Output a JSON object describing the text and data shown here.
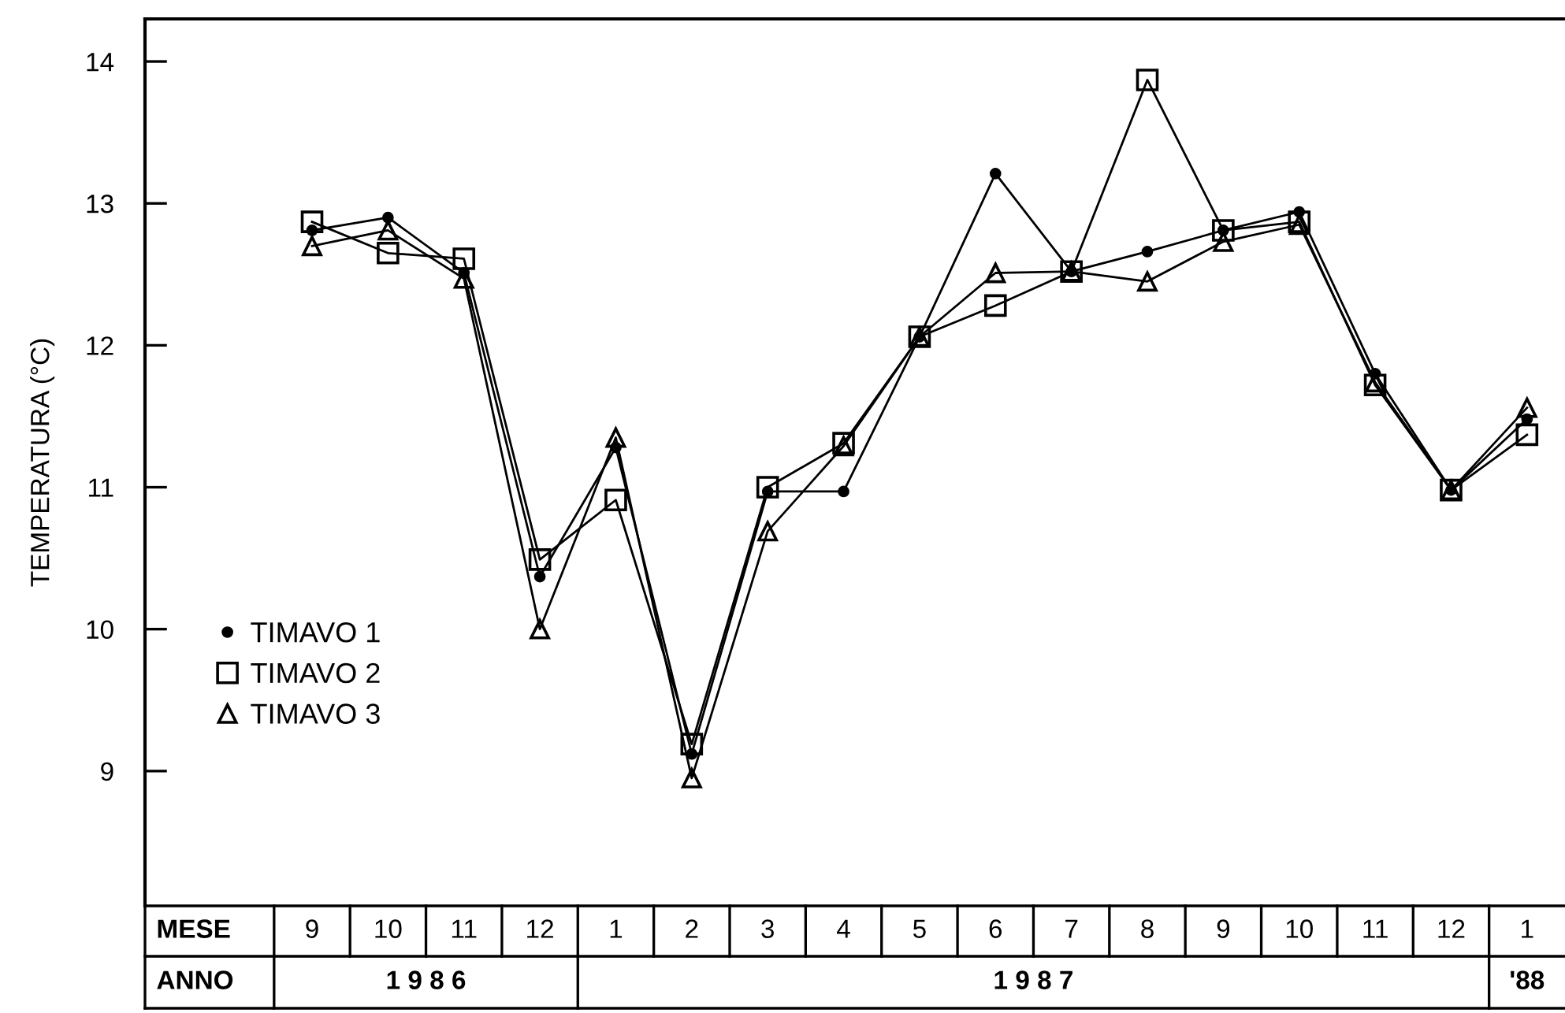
{
  "chart_data": {
    "type": "line",
    "ylabel": "TEMPERATURA (°C)",
    "xlabel": "MESE",
    "categories": [
      "9",
      "10",
      "11",
      "12",
      "1",
      "2",
      "3",
      "4",
      "5",
      "6",
      "7",
      "8",
      "9",
      "10",
      "11",
      "12",
      "1"
    ],
    "annotations": [
      "ANNO",
      "1 9 8 6",
      "1 9 8 7",
      "'88"
    ],
    "series": [
      {
        "name": "TIMAVO 1",
        "color": "#000000",
        "marker": "circle",
        "values": [
          12.81,
          12.9,
          12.51,
          10.37,
          11.28,
          9.12,
          10.97,
          10.97,
          12.06,
          13.21,
          12.52,
          12.66,
          12.81,
          12.94,
          11.8,
          10.98,
          11.48
        ]
      },
      {
        "name": "TIMAVO 2",
        "color": "#000000",
        "marker": "square",
        "values": [
          12.87,
          12.65,
          12.61,
          10.49,
          10.91,
          9.19,
          11.0,
          11.31,
          12.06,
          12.28,
          12.52,
          13.87,
          12.81,
          12.87,
          11.72,
          10.98,
          11.37
        ]
      },
      {
        "name": "TIMAVO 3",
        "color": "#000000",
        "marker": "triangle",
        "values": [
          12.7,
          12.81,
          12.47,
          10.0,
          11.35,
          8.95,
          10.69,
          11.29,
          12.06,
          12.51,
          12.52,
          12.45,
          12.73,
          12.85,
          11.74,
          10.98,
          11.56
        ]
      }
    ],
    "ylim": [
      8.05,
      14.3
    ],
    "yticks": [
      9,
      10,
      11,
      12,
      13,
      14
    ],
    "grid": false,
    "legend": "bottom left",
    "line_style": "solid"
  }
}
